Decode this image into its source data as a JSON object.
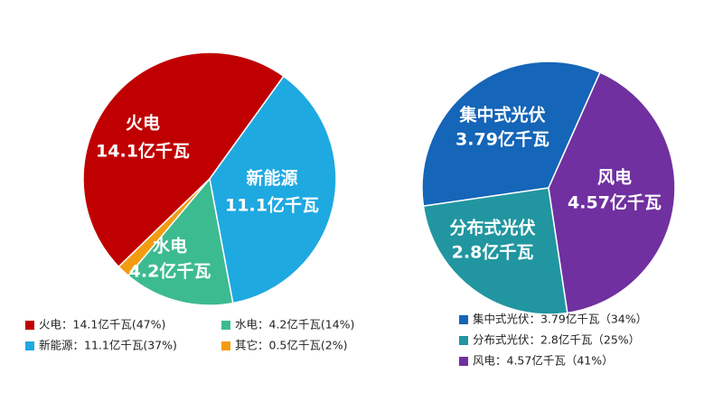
{
  "chart_data": [
    {
      "type": "pie",
      "categories": [
        "火电",
        "新能源",
        "水电",
        "其它"
      ],
      "values": [
        14.1,
        11.1,
        4.2,
        0.5
      ],
      "value_labels": [
        "14.1亿千瓦",
        "11.1亿千瓦",
        "4.2亿千瓦",
        "0.5亿千瓦"
      ],
      "colors": [
        "#c00000",
        "#1fa9e1",
        "#3dbb90",
        "#f39c12"
      ],
      "legend": [
        "火电：14.1亿千瓦(47%)",
        "新能源：11.1亿千瓦(37%)",
        "水电：4.2亿千瓦(14%)",
        "其它：0.5亿千瓦(2%)"
      ]
    },
    {
      "type": "pie",
      "categories": [
        "集中式光伏",
        "分布式光伏",
        "风电"
      ],
      "values": [
        3.79,
        2.8,
        4.57
      ],
      "value_labels": [
        "3.79亿千瓦",
        "2.8亿千瓦",
        "4.57亿千瓦"
      ],
      "colors": [
        "#1565b8",
        "#2196a0",
        "#7030a0"
      ],
      "legend": [
        "集中式光伏：3.79亿千瓦（34%）",
        "分布式光伏：2.8亿千瓦（25%）",
        "风电：4.57亿千瓦（41%）"
      ]
    }
  ]
}
